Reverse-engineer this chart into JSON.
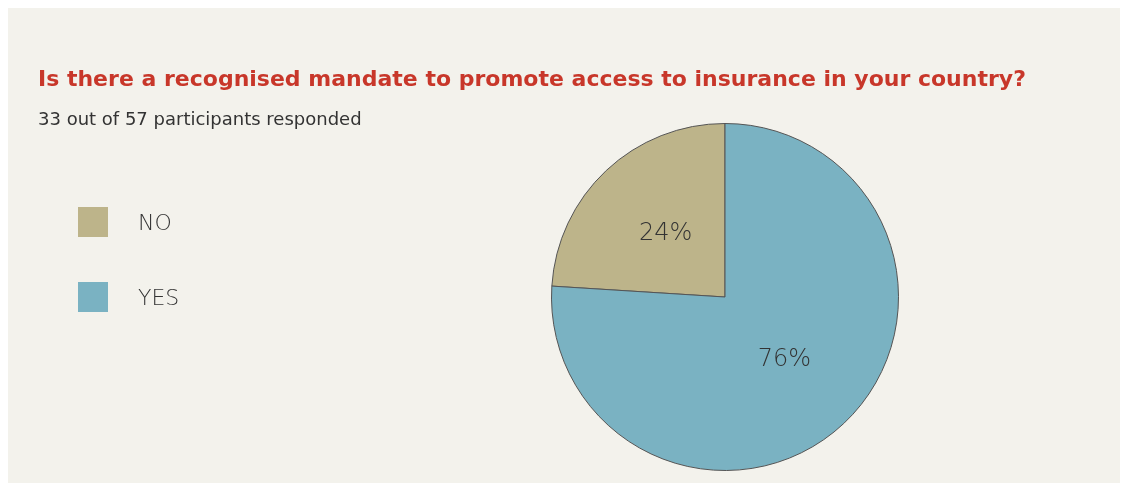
{
  "chart_data": {
    "type": "pie",
    "title": "Is there a recognised mandate to promote access to insurance in your country?",
    "subtitle": "33 out of 57 participants responded",
    "categories": [
      "NO",
      "YES"
    ],
    "values": [
      24,
      76
    ],
    "colors": [
      "#bdb48a",
      "#7ab2c2"
    ],
    "value_labels": [
      "24%",
      "76%"
    ],
    "legend": "left"
  }
}
